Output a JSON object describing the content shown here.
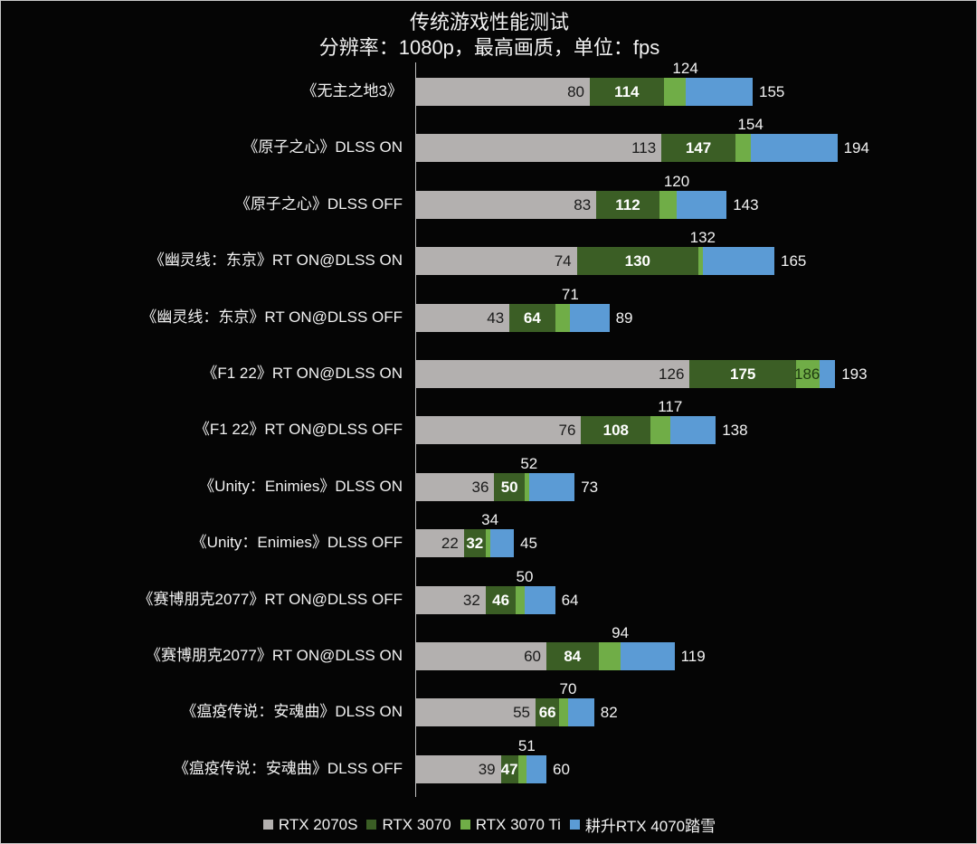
{
  "chart_data": {
    "type": "bar",
    "orientation": "horizontal",
    "bar_mode": "overlay",
    "title": "传统游戏性能测试",
    "subtitle": "分辨率：1080p，最高画质，单位：fps",
    "xlabel": "",
    "ylabel": "",
    "xlim": [
      0,
      260
    ],
    "grid": false,
    "legend_position": "bottom",
    "categories": [
      "《无主之地3》",
      "《原子之心》DLSS ON",
      "《原子之心》DLSS OFF",
      "《幽灵线：东京》RT ON@DLSS ON",
      "《幽灵线：东京》RT ON@DLSS OFF",
      "《F1 22》RT ON@DLSS ON",
      "《F1 22》RT ON@DLSS OFF",
      "《Unity：Enimies》DLSS ON",
      "《Unity：Enimies》DLSS OFF",
      "《赛博朋克2077》RT ON@DLSS OFF",
      "《赛博朋克2077》RT ON@DLSS ON",
      "《瘟疫传说：安魂曲》DLSS ON",
      "《瘟疫传说：安魂曲》DLSS OFF"
    ],
    "series": [
      {
        "name": "RTX 2070S",
        "color": "#b3b0af",
        "values": [
          80,
          113,
          83,
          74,
          43,
          126,
          76,
          36,
          22,
          32,
          60,
          55,
          39
        ]
      },
      {
        "name": "RTX 3070",
        "color": "#3b5e25",
        "values": [
          114,
          147,
          112,
          130,
          64,
          175,
          108,
          50,
          32,
          46,
          84,
          66,
          47
        ]
      },
      {
        "name": "RTX 3070 Ti",
        "color": "#70ad47",
        "values": [
          124,
          154,
          120,
          132,
          71,
          186,
          117,
          52,
          34,
          50,
          94,
          70,
          51
        ]
      },
      {
        "name": "耕升RTX 4070踏雪",
        "color": "#5b9bd5",
        "values": [
          155,
          194,
          143,
          165,
          89,
          193,
          138,
          73,
          45,
          64,
          119,
          82,
          60
        ]
      }
    ]
  },
  "legend": {
    "items": [
      {
        "label": "RTX 2070S",
        "color": "#b3b0af"
      },
      {
        "label": "RTX 3070",
        "color": "#3b5e25"
      },
      {
        "label": "RTX 3070 Ti",
        "color": "#70ad47"
      },
      {
        "label": "耕升RTX 4070踏雪",
        "color": "#5b9bd5"
      }
    ]
  }
}
